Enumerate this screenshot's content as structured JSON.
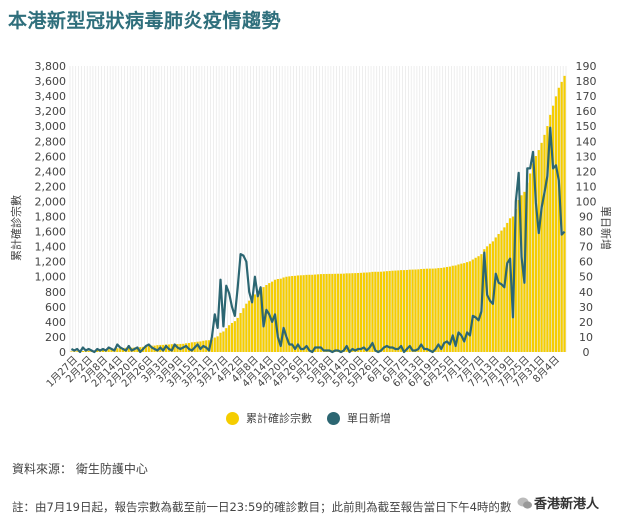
{
  "title": "本港新型冠狀病毒肺炎疫情趨勢",
  "legend": {
    "cumulative": "累計確診宗數",
    "daily": "單日新增"
  },
  "source": "資料來源： 衛生防護中心",
  "note": "註：由7月19日起，報告宗數為截至前一日23:59的確診數目；此前則為截至報告當日下午4時的數",
  "watermark": "香港新港人",
  "colors": {
    "cumulative": "#f5cd00",
    "daily": "#2c6672",
    "title": "#2f6f7c"
  },
  "chart_data": {
    "type": "bar+line",
    "x_tick_labels": [
      "1月27日",
      "2月2日",
      "2月8日",
      "2月14日",
      "2月20日",
      "2月26日",
      "3月3日",
      "3月9日",
      "3月15日",
      "3月21日",
      "3月27日",
      "4月2日",
      "4月8日",
      "4月14日",
      "4月20日",
      "4月26日",
      "5月2日",
      "5月8日",
      "5月14日",
      "5月20日",
      "5月26日",
      "6月1日",
      "6月7日",
      "6月13日",
      "6月19日",
      "6月25日",
      "7月1日",
      "7月7日",
      "7月13日",
      "7月19日",
      "7月25日",
      "7月31日",
      "8月4日"
    ],
    "ylabel_left": "累計確診宗數",
    "ylabel_right": "單日新增",
    "ylim_left": [
      0,
      3800
    ],
    "ylim_right": [
      0,
      190
    ],
    "y_ticks_left": [
      "0",
      "200",
      "400",
      "600",
      "800",
      "1,000",
      "1,200",
      "1,400",
      "1,600",
      "1,800",
      "2,000",
      "2,200",
      "2,400",
      "2,600",
      "2,800",
      "3,000",
      "3,200",
      "3,400",
      "3,600",
      "3,800"
    ],
    "y_ticks_right": [
      "0",
      "10",
      "20",
      "30",
      "40",
      "50",
      "60",
      "70",
      "80",
      "90",
      "100",
      "110",
      "120",
      "130",
      "140",
      "150",
      "160",
      "170",
      "180",
      "190"
    ],
    "grid": "vertical",
    "series": [
      {
        "name": "累計確診宗數",
        "type": "bar",
        "values": [
          8,
          8,
          10,
          12,
          13,
          15,
          15,
          17,
          18,
          21,
          24,
          26,
          29,
          36,
          38,
          42,
          49,
          50,
          53,
          56,
          56,
          57,
          60,
          62,
          65,
          69,
          74,
          81,
          84,
          85,
          91,
          94,
          95,
          100,
          100,
          104,
          105,
          105,
          107,
          109,
          115,
          120,
          129,
          131,
          137,
          141,
          149,
          155,
          157,
          167,
          192,
          208,
          256,
          273,
          317,
          356,
          386,
          410,
          453,
          518,
          582,
          642,
          682,
          715,
          765,
          802,
          845,
          862,
          890,
          915,
          935,
          960,
          970,
          974,
          990,
          1000,
          1005,
          1010,
          1012,
          1017,
          1019,
          1021,
          1025,
          1026,
          1026,
          1029,
          1032,
          1035,
          1036,
          1037,
          1038,
          1038,
          1039,
          1040,
          1040,
          1041,
          1045,
          1045,
          1047,
          1048,
          1050,
          1052,
          1055,
          1056,
          1059,
          1065,
          1066,
          1066,
          1067,
          1070,
          1074,
          1077,
          1080,
          1082,
          1084,
          1088,
          1088,
          1090,
          1094,
          1095,
          1096,
          1098,
          1103,
          1105,
          1107,
          1108,
          1108,
          1110,
          1115,
          1117,
          1123,
          1130,
          1135,
          1146,
          1150,
          1163,
          1174,
          1181,
          1194,
          1205,
          1229,
          1252,
          1273,
          1300,
          1366,
          1404,
          1438,
          1470,
          1522,
          1568,
          1613,
          1656,
          1715,
          1777,
          1800,
          1900,
          2019,
          2082,
          2128,
          2250,
          2372,
          2505,
          2604,
          2683,
          2779,
          2885,
          3002,
          3151,
          3273,
          3397,
          3511,
          3589,
          3669
        ]
      },
      {
        "name": "單日新增",
        "type": "line",
        "values": [
          2,
          1,
          2,
          0,
          3,
          1,
          2,
          1,
          0,
          2,
          1,
          2,
          1,
          3,
          2,
          1,
          5,
          3,
          2,
          1,
          4,
          1,
          2,
          3,
          0,
          2,
          4,
          5,
          3,
          2,
          1,
          3,
          1,
          4,
          2,
          1,
          5,
          3,
          2,
          3,
          4,
          2,
          1,
          3,
          5,
          2,
          4,
          3,
          1,
          10,
          25,
          16,
          48,
          17,
          44,
          39,
          30,
          24,
          43,
          65,
          64,
          60,
          40,
          33,
          50,
          37,
          43,
          17,
          28,
          25,
          20,
          25,
          10,
          4,
          16,
          10,
          5,
          5,
          2,
          5,
          2,
          2,
          4,
          1,
          0,
          3,
          3,
          3,
          1,
          1,
          1,
          0,
          1,
          1,
          0,
          1,
          4,
          0,
          2,
          1,
          2,
          2,
          3,
          1,
          3,
          6,
          1,
          0,
          1,
          3,
          4,
          3,
          3,
          2,
          2,
          4,
          0,
          2,
          4,
          1,
          1,
          2,
          5,
          2,
          2,
          1,
          0,
          2,
          5,
          2,
          6,
          7,
          5,
          11,
          4,
          13,
          11,
          7,
          13,
          11,
          24,
          23,
          21,
          27,
          66,
          38,
          34,
          32,
          52,
          46,
          45,
          43,
          59,
          62,
          23,
          100,
          119,
          63,
          46,
          122,
          122,
          133,
          99,
          79,
          96,
          106,
          117,
          149,
          122,
          124,
          114,
          78,
          80
        ]
      }
    ]
  }
}
